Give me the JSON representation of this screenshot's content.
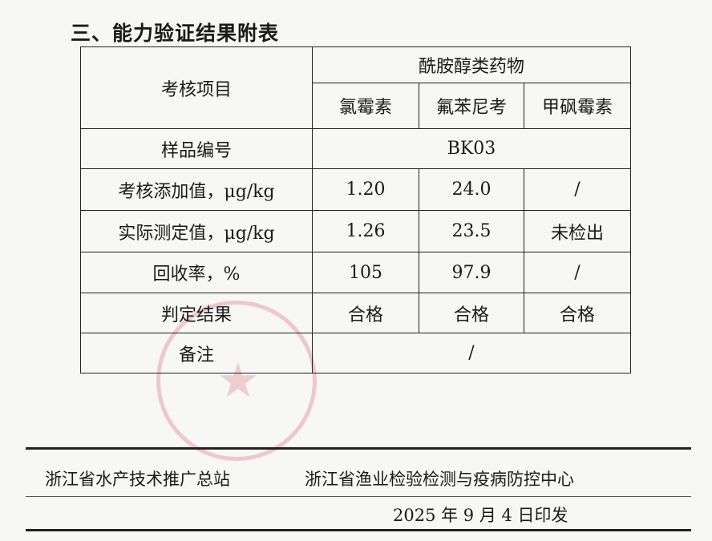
{
  "heading": "三、能力验证结果附表",
  "table": {
    "item_header": "考核项目",
    "group_header": "酰胺醇类药物",
    "drugs": [
      "氯霉素",
      "氟苯尼考",
      "甲砜霉素"
    ],
    "sample_label": "样品编号",
    "sample_value": "BK03",
    "rows": [
      {
        "label": "考核添加值，μg/kg",
        "values": [
          "1.20",
          "24.0",
          "/"
        ]
      },
      {
        "label": "实际测定值，μg/kg",
        "values": [
          "1.26",
          "23.5",
          "未检出"
        ]
      },
      {
        "label": "回收率，%",
        "values": [
          "105",
          "97.9",
          "/"
        ]
      },
      {
        "label": "判定结果",
        "values": [
          "合格",
          "合格",
          "合格"
        ]
      }
    ],
    "remark_label": "备注",
    "remark_value": "/"
  },
  "footer": {
    "org1": "浙江省水产技术推广总站",
    "org2": "浙江省渔业检验检测与疫病防控中心",
    "date": "2025 年 9 月 4 日印发"
  },
  "stamp_color": "#dc6e82"
}
